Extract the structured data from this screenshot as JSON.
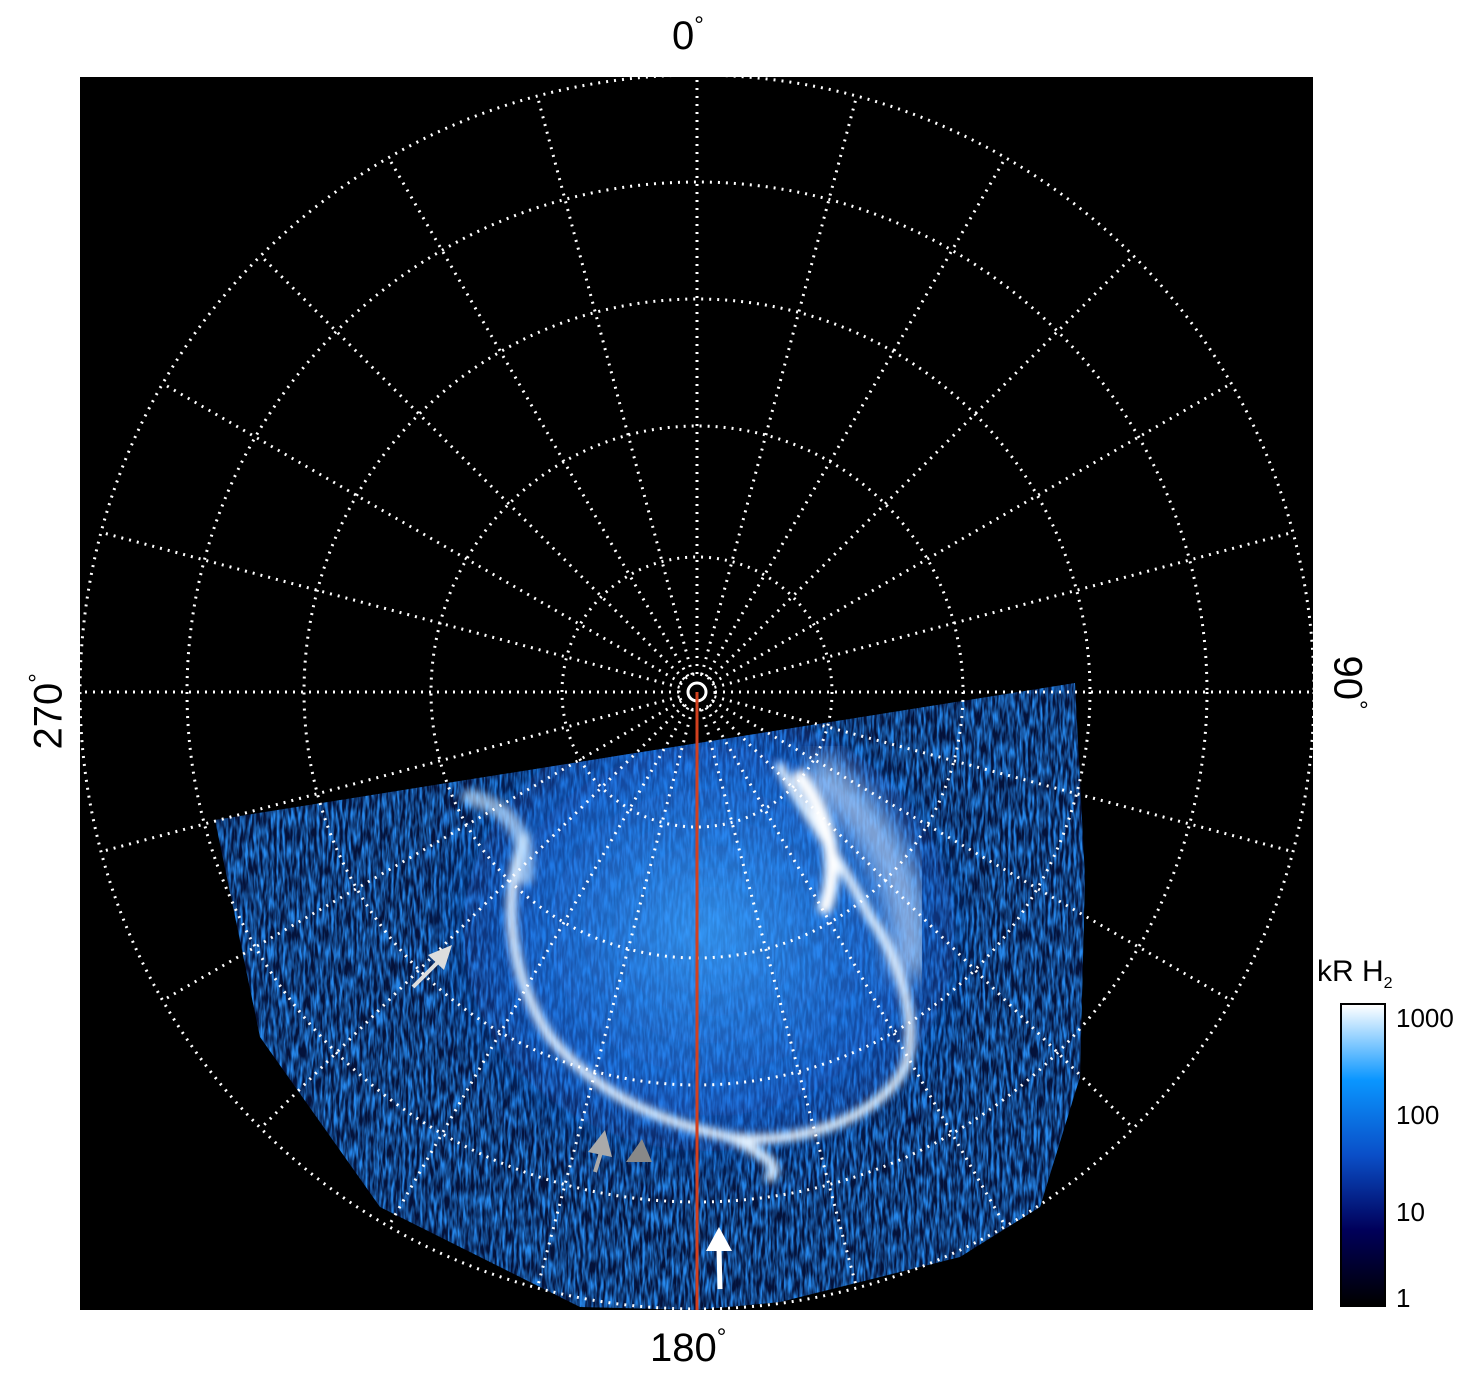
{
  "axis_labels": {
    "top": "0",
    "right": "90",
    "bottom": "180",
    "left": "270",
    "degree_symbol": "°"
  },
  "colorbar": {
    "title": "kR H",
    "title_subscript": "2",
    "scale": "log",
    "range": [
      1,
      1000
    ],
    "ticks": [
      "1000",
      "100",
      "10",
      "1"
    ],
    "colors": [
      "#000000",
      "#00005a",
      "#0a4fc8",
      "#0a96ff",
      "#ffffff"
    ]
  },
  "grid": {
    "style": "dotted",
    "color": "#ffffff",
    "meridian_step_deg": 15,
    "parallel_count": 5
  },
  "reference_meridian": {
    "longitude_deg": 180,
    "color": "#d2401e"
  },
  "background_color": "#000000",
  "arrows": [
    {
      "color": "#ffffff",
      "points_to": "equatorward patch near 180°"
    },
    {
      "color": "#aaaaaa",
      "points_to": "secondary arc"
    },
    {
      "color": "#888888",
      "points_to": "secondary arc"
    },
    {
      "color": "#dddddd",
      "points_to": "dawn-side oval"
    }
  ]
}
